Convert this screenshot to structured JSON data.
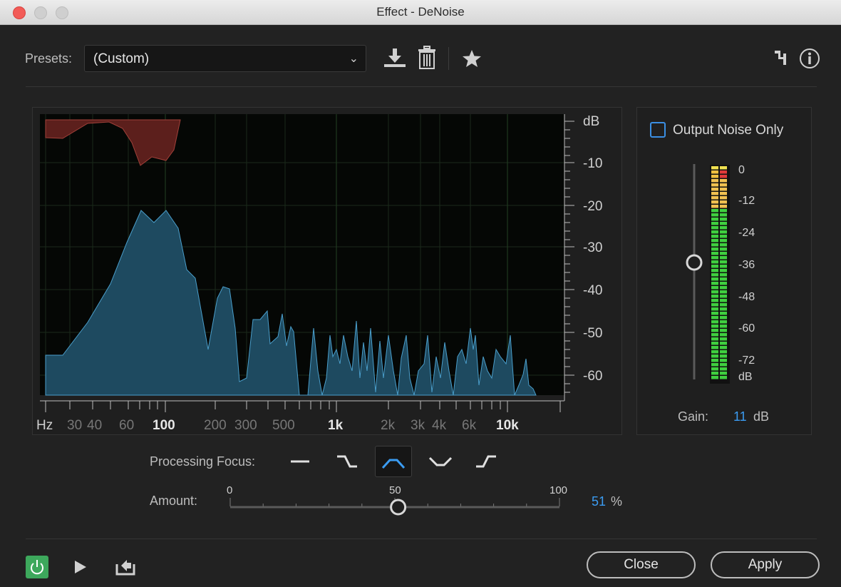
{
  "window": {
    "title": "Effect - DeNoise"
  },
  "toolbar": {
    "presets_label": "Presets:",
    "preset_value": "(Custom)",
    "icons": [
      "download-preset-icon",
      "trash-icon",
      "star-icon",
      "routing-icon",
      "info-icon"
    ]
  },
  "graph": {
    "db_axis": [
      "dB",
      "-10",
      "-20",
      "-30",
      "-40",
      "-50",
      "-60"
    ],
    "hz_axis": [
      "Hz",
      "30",
      "40",
      "60",
      "100",
      "200",
      "300",
      "500",
      "1k",
      "2k",
      "3k",
      "4k",
      "6k",
      "10k"
    ]
  },
  "output_panel": {
    "output_noise_only_label": "Output Noise Only",
    "output_noise_only_checked": false,
    "meter_scale": [
      "0",
      "-12",
      "-24",
      "-36",
      "-48",
      "-60",
      "-72",
      "dB"
    ],
    "gain_label": "Gain:",
    "gain_value": "11",
    "gain_unit": "dB"
  },
  "processing_focus": {
    "label": "Processing Focus:",
    "options": [
      "broadband",
      "low-shelf",
      "mid-peak",
      "mid-notch",
      "high-shelf"
    ],
    "selected": "mid-peak"
  },
  "amount": {
    "label": "Amount:",
    "min_label": "0",
    "mid_label": "50",
    "max_label": "100",
    "value": "51",
    "unit": "%"
  },
  "footer": {
    "close_label": "Close",
    "apply_label": "Apply"
  },
  "colors": {
    "accent_blue": "#3b9cf2",
    "power_green": "#3da85c",
    "noise_fill": "#1e4a60",
    "threshold_fill": "#5c1f1c"
  }
}
